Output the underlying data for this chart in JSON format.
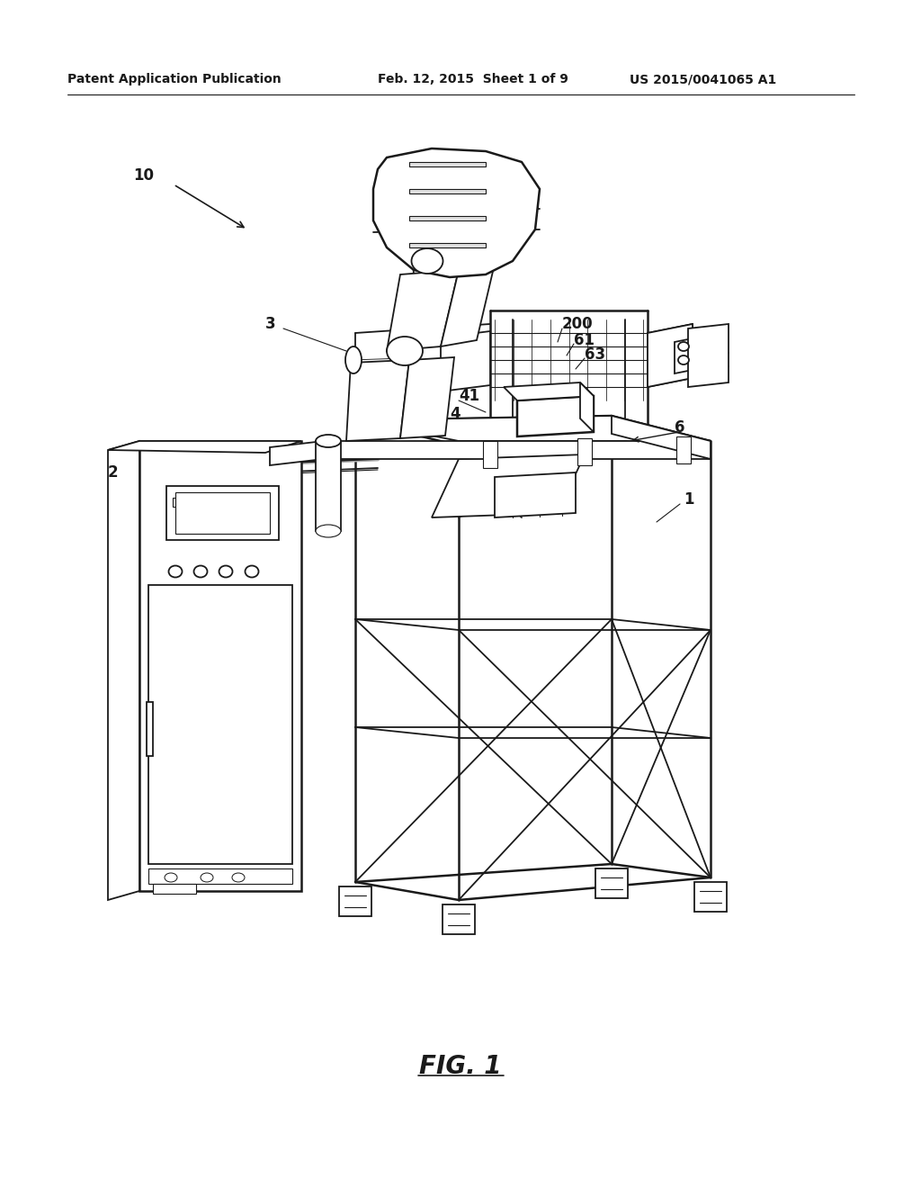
{
  "background_color": "#ffffff",
  "line_color": "#1a1a1a",
  "header_left": "Patent Application Publication",
  "header_mid": "Feb. 12, 2015  Sheet 1 of 9",
  "header_right": "US 2015/0041065 A1",
  "fig_label": "FIG. 1",
  "lw_main": 1.3,
  "lw_thin": 0.8,
  "lw_thick": 1.8,
  "label_fontsize": 12,
  "header_fontsize": 10
}
